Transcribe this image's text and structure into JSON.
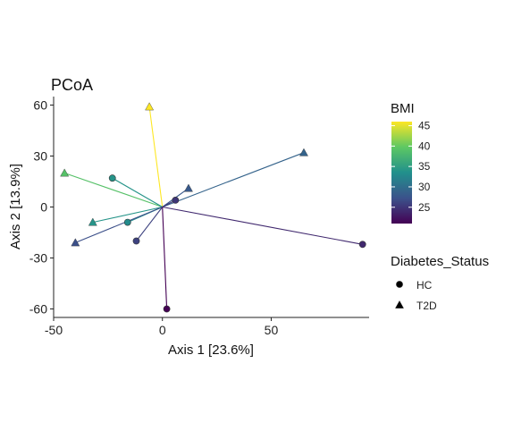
{
  "chart_data": {
    "type": "scatter",
    "title": "PCoA",
    "xlabel": "Axis 1 [23.6%]",
    "ylabel": "Axis 2 [13.9%]",
    "xlim": [
      -50,
      95
    ],
    "ylim": [
      -65,
      65
    ],
    "x_ticks": [
      -50,
      0,
      50
    ],
    "y_ticks": [
      -60,
      -30,
      0,
      30,
      60
    ],
    "grid": false,
    "centroid": [
      0,
      0
    ],
    "color_legend": {
      "title": "BMI",
      "range": [
        21,
        46
      ],
      "ticks": [
        25,
        30,
        35,
        40,
        45
      ],
      "colormap": [
        "#440154",
        "#3b528b",
        "#21908c",
        "#5dc863",
        "#fde725"
      ]
    },
    "shape_legend": {
      "title": "Diabetes_Status",
      "entries": [
        {
          "label": "HC",
          "shape": "circle"
        },
        {
          "label": "T2D",
          "shape": "triangle"
        }
      ]
    },
    "points": [
      {
        "x": -6,
        "y": 59,
        "group": "T2D",
        "bmi": 46
      },
      {
        "x": -45,
        "y": 20,
        "group": "T2D",
        "bmi": 39
      },
      {
        "x": -23,
        "y": 17,
        "group": "HC",
        "bmi": 34
      },
      {
        "x": 65,
        "y": 32,
        "group": "T2D",
        "bmi": 29
      },
      {
        "x": 12,
        "y": 11,
        "group": "T2D",
        "bmi": 28
      },
      {
        "x": 6,
        "y": 4,
        "group": "HC",
        "bmi": 25
      },
      {
        "x": -16,
        "y": -9,
        "group": "HC",
        "bmi": 33
      },
      {
        "x": -32,
        "y": -9,
        "group": "T2D",
        "bmi": 34
      },
      {
        "x": -40,
        "y": -21,
        "group": "T2D",
        "bmi": 27
      },
      {
        "x": -12,
        "y": -20,
        "group": "HC",
        "bmi": 26
      },
      {
        "x": 2,
        "y": -60,
        "group": "HC",
        "bmi": 21
      },
      {
        "x": 92,
        "y": -22,
        "group": "HC",
        "bmi": 24
      }
    ]
  }
}
